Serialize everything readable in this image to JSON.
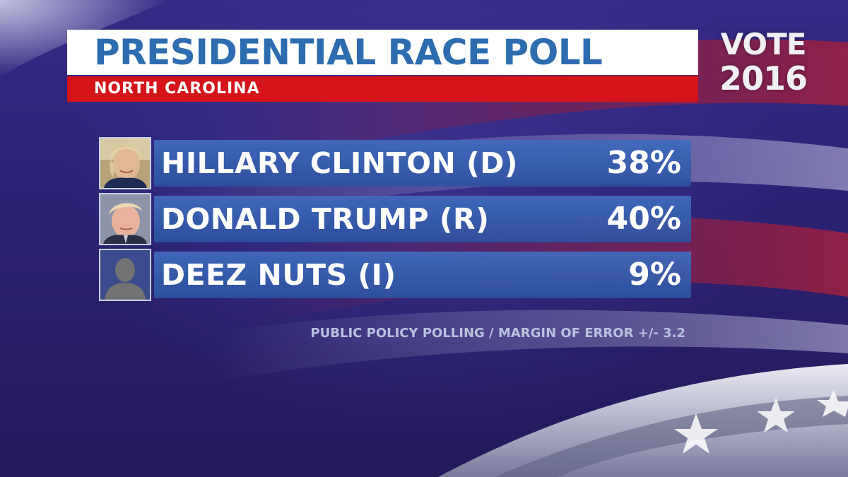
{
  "title": "PRESIDENTIAL RACE POLL",
  "subtitle": "NORTH CAROLINA",
  "logo": {
    "line1": "VOTE",
    "line2": "2016"
  },
  "candidates": [
    {
      "name": "HILLARY CLINTON (D)",
      "percent": "38%",
      "photo_icon": "candidate-photo-woman"
    },
    {
      "name": "DONALD TRUMP (R)",
      "percent": "40%",
      "photo_icon": "candidate-photo-man"
    },
    {
      "name": "DEEZ NUTS (I)",
      "percent": "9%",
      "photo_icon": "silhouette-placeholder"
    }
  ],
  "source": "PUBLIC POLICY POLLING / MARGIN OF ERROR +/- 3.2",
  "colors": {
    "title_text": "#2e6cb0",
    "subtitle_bar": "#d41418",
    "candidate_bar": "#3a66b4",
    "background": "#2c2275"
  }
}
